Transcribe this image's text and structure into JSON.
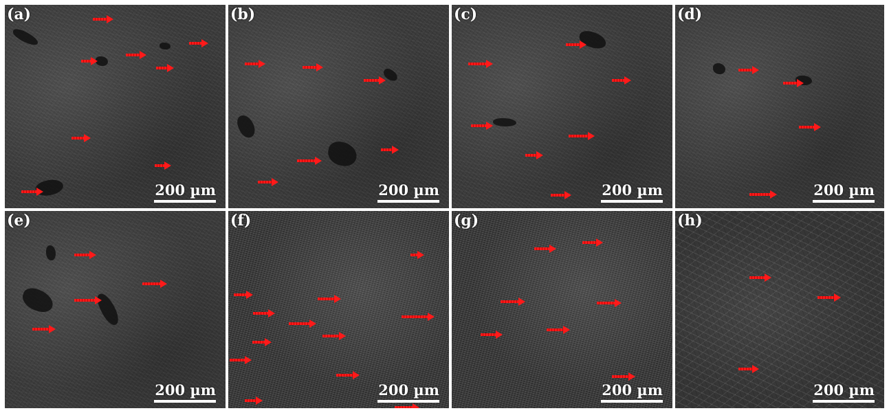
{
  "figure": {
    "panels": [
      {
        "label": "(a)",
        "scale": "200 µm"
      },
      {
        "label": "(b)",
        "scale": "200 µm"
      },
      {
        "label": "(c)",
        "scale": "200 µm"
      },
      {
        "label": "(d)",
        "scale": "200 µm"
      },
      {
        "label": "(e)",
        "scale": "200 µm"
      },
      {
        "label": "(f)",
        "scale": "200 µm"
      },
      {
        "label": "(g)",
        "scale": "200 µm"
      },
      {
        "label": "(h)",
        "scale": "200 µm"
      }
    ],
    "colors": {
      "arrow": "#ff1a1a",
      "label_text": "#ffffff",
      "background": "#ffffff"
    },
    "icons": [
      "red-arrow-marker"
    ]
  }
}
